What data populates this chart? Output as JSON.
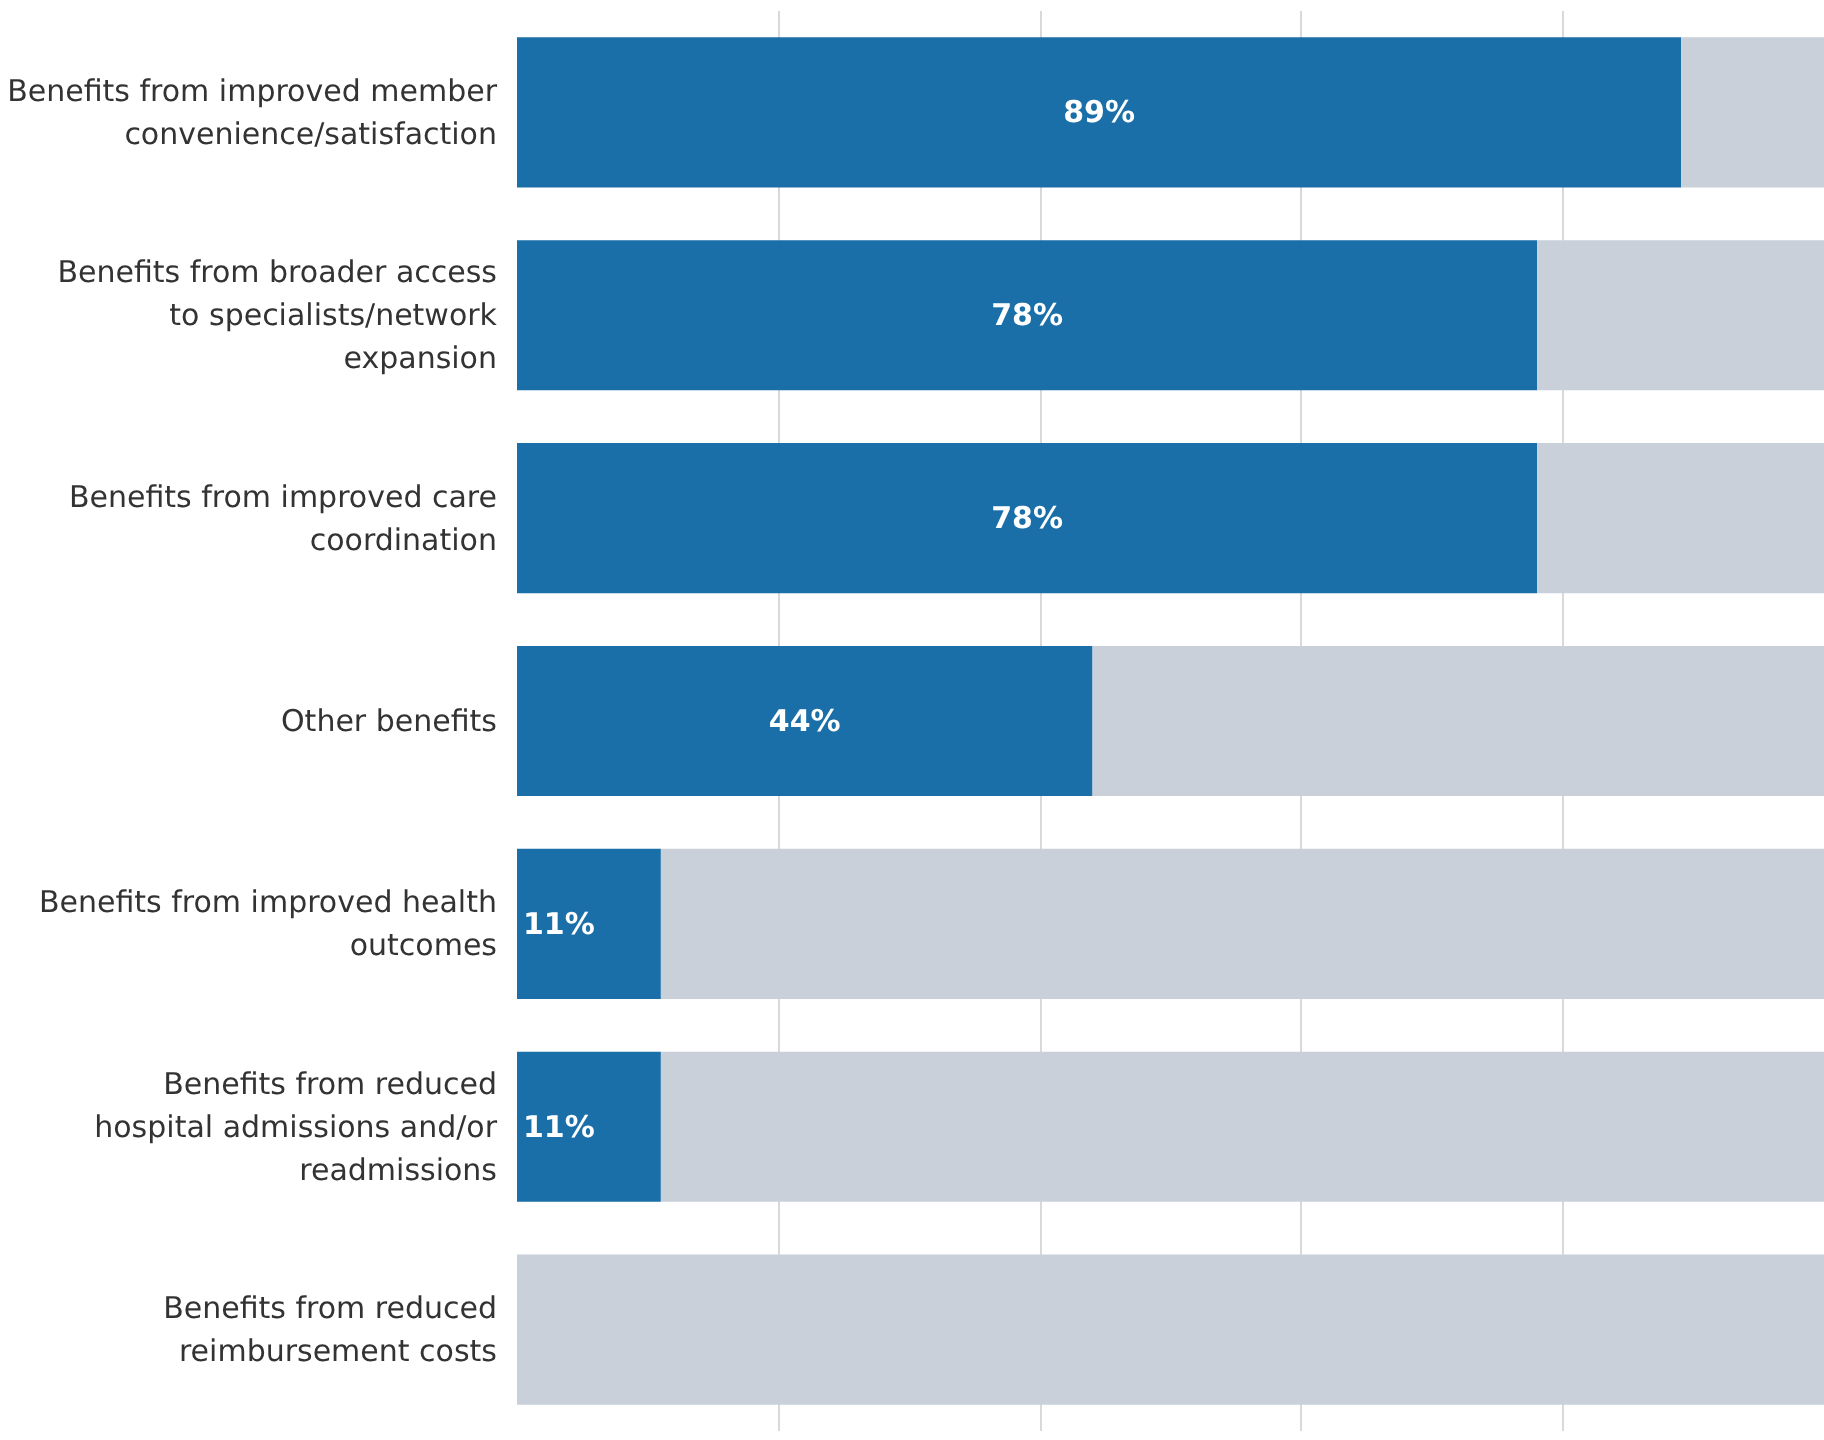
{
  "chart_data": {
    "type": "bar",
    "orientation": "horizontal",
    "stacked": true,
    "categories": [
      "Benefits from improved member convenience/satisfaction",
      "Benefits from broader access to specialists/network expansion",
      "Benefits from improved care coordination",
      "Other benefits",
      "Benefits from improved health outcomes",
      "Benefits from reduced hospital admissions and/or readmissions",
      "Benefits from reduced reimbursement costs"
    ],
    "series": [
      {
        "color": "#1a6fa8",
        "values": [
          89,
          78,
          78,
          44,
          11,
          11,
          0
        ],
        "value_labels": [
          "89%",
          "78%",
          "78%",
          "44%",
          "11%",
          "11%",
          null
        ]
      },
      {
        "color": "#c9d0da",
        "values": [
          11,
          22,
          22,
          56,
          89,
          89,
          100
        ]
      }
    ],
    "xlim": [
      0,
      100
    ],
    "xticks": [
      {
        "value": 20,
        "label": null
      },
      {
        "value": 40,
        "label": null
      },
      {
        "value": 60,
        "label": null
      },
      {
        "value": 80,
        "label": null
      }
    ],
    "tick_labels": false,
    "grid": "x"
  }
}
